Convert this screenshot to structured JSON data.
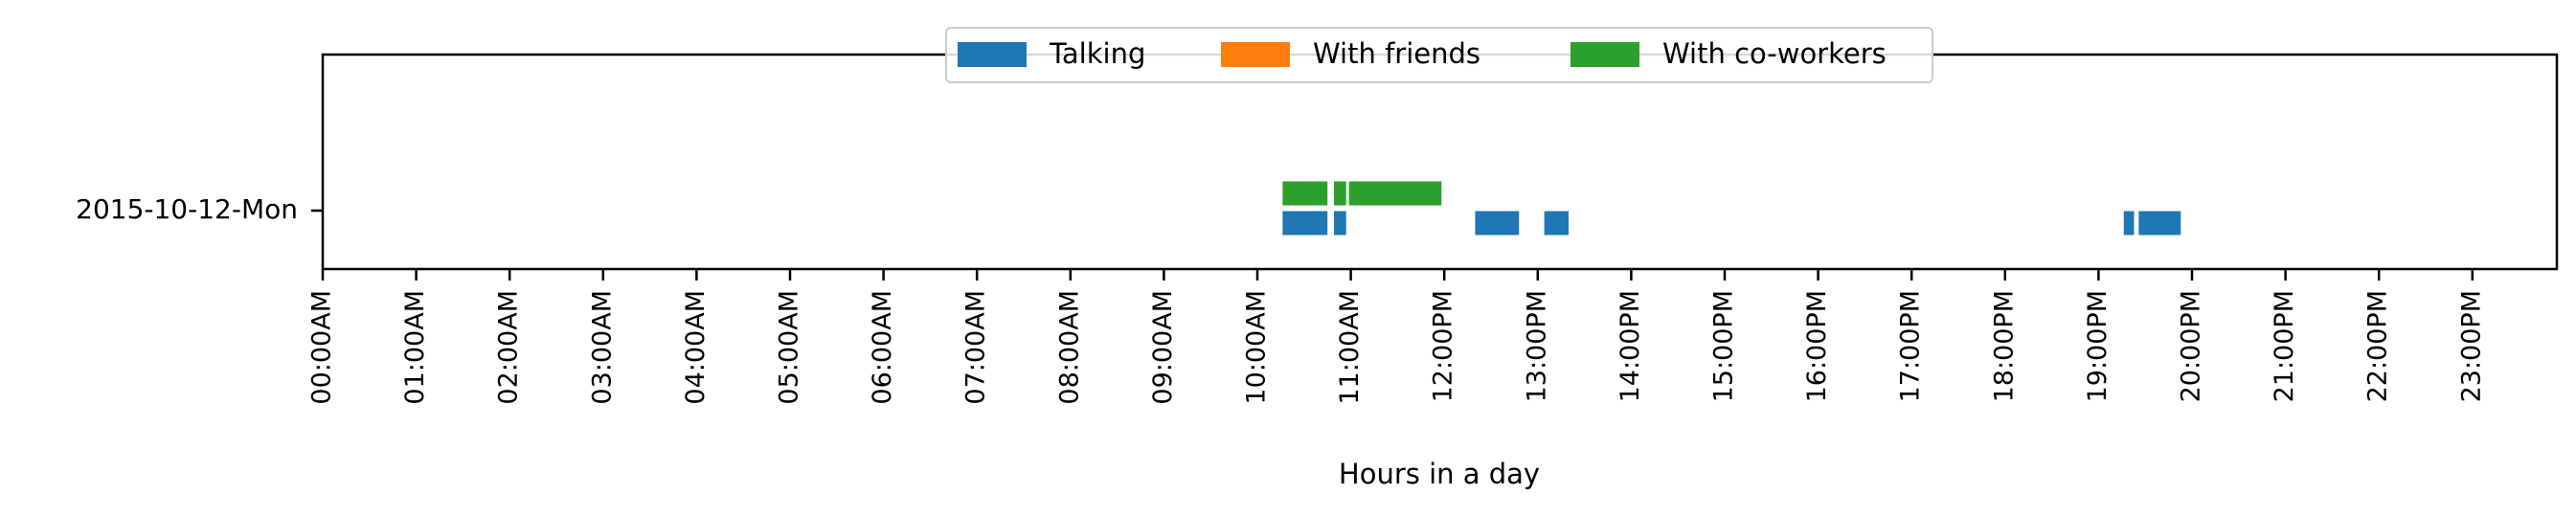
{
  "chart_data": {
    "type": "timeline",
    "xlabel": "Hours in a day",
    "xlim": [
      0,
      24
    ],
    "x_ticks": [
      0,
      1,
      2,
      3,
      4,
      5,
      6,
      7,
      8,
      9,
      10,
      11,
      12,
      13,
      14,
      15,
      16,
      17,
      18,
      19,
      20,
      21,
      22,
      23
    ],
    "x_tick_labels": [
      "00:00AM",
      "01:00AM",
      "02:00AM",
      "03:00AM",
      "04:00AM",
      "05:00AM",
      "06:00AM",
      "07:00AM",
      "08:00AM",
      "09:00AM",
      "10:00AM",
      "11:00AM",
      "12:00PM",
      "13:00PM",
      "14:00PM",
      "15:00PM",
      "16:00PM",
      "17:00PM",
      "18:00PM",
      "19:00PM",
      "20:00PM",
      "21:00PM",
      "22:00PM",
      "23:00PM"
    ],
    "categories": [
      "2015-10-12-Mon"
    ],
    "legend": {
      "placement": "top-center",
      "columns": 3
    },
    "grid": false,
    "series": [
      {
        "name": "Talking",
        "color": "#1f77b4",
        "lane": 0,
        "intervals": [
          [
            10.27,
            10.75
          ],
          [
            10.82,
            10.95
          ],
          [
            12.33,
            12.8
          ],
          [
            13.07,
            13.33
          ],
          [
            19.27,
            19.38
          ],
          [
            19.43,
            19.88
          ]
        ]
      },
      {
        "name": "With friends",
        "color": "#ff7f0e",
        "lane": 1,
        "intervals": []
      },
      {
        "name": "With co-workers",
        "color": "#2ca02c",
        "lane": 2,
        "intervals": [
          [
            10.27,
            10.75
          ],
          [
            10.82,
            10.95
          ],
          [
            10.98,
            11.97
          ]
        ]
      }
    ]
  }
}
